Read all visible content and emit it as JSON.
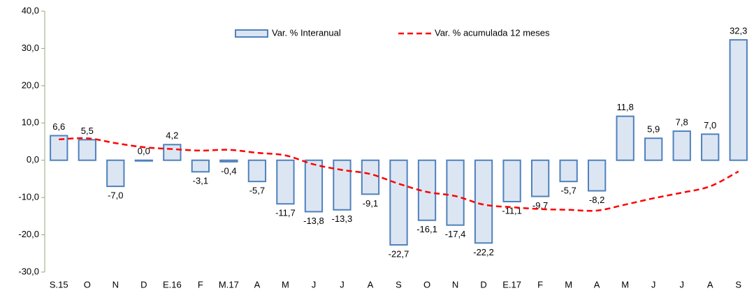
{
  "chart_data": {
    "type": "bar",
    "categories": [
      "S.15",
      "O",
      "N",
      "D",
      "E.16",
      "F",
      "M.17",
      "A",
      "M",
      "J",
      "J",
      "A",
      "S",
      "O",
      "N",
      "D",
      "E.17",
      "F",
      "M",
      "A",
      "M",
      "J",
      "J",
      "A",
      "S"
    ],
    "series": [
      {
        "name": "Var. % Interanual",
        "type": "bar",
        "color": "#dce6f2",
        "edge_color": "#4f81bd",
        "values": [
          6.6,
          5.5,
          -7.0,
          0.0,
          4.2,
          -3.1,
          -0.4,
          -5.7,
          -11.7,
          -13.8,
          -13.3,
          -9.1,
          -22.7,
          -16.1,
          -17.4,
          -22.2,
          -11.1,
          -9.7,
          -5.7,
          -8.2,
          11.8,
          5.9,
          7.8,
          7.0,
          32.3
        ],
        "value_labels": [
          "6,6",
          "5,5",
          "-7,0",
          "0,0",
          "4,2",
          "-3,1",
          "-0,4",
          "-5,7",
          "-11,7",
          "-13,8",
          "-13,3",
          "-9,1",
          "-22,7",
          "-16,1",
          "-17,4",
          "-22,2",
          "-11,1",
          "-9,7",
          "-5,7",
          "-8,2",
          "11,8",
          "5,9",
          "7,8",
          "7,0",
          "32,3"
        ]
      },
      {
        "name": "Var. % acumulada 12 meses",
        "type": "line",
        "color": "#ff0000",
        "dashed": true,
        "values": [
          5.6,
          5.9,
          4.6,
          3.5,
          3.0,
          2.6,
          2.8,
          2.0,
          1.3,
          -1.1,
          -2.6,
          -3.7,
          -6.3,
          -8.5,
          -9.6,
          -11.9,
          -12.6,
          -13.1,
          -13.3,
          -13.5,
          -11.9,
          -10.2,
          -8.7,
          -7.0,
          -3.0
        ]
      }
    ],
    "ylim": [
      -30,
      40
    ],
    "yticks": [
      {
        "value": -30,
        "label": "-30,0"
      },
      {
        "value": -20,
        "label": "-20,0"
      },
      {
        "value": -10,
        "label": "-10,0"
      },
      {
        "value": 0,
        "label": "0,0"
      },
      {
        "value": 10,
        "label": "10,0"
      },
      {
        "value": 20,
        "label": "20,0"
      },
      {
        "value": 30,
        "label": "30,0"
      },
      {
        "value": 40,
        "label": "40,0"
      }
    ],
    "legend": "top"
  }
}
